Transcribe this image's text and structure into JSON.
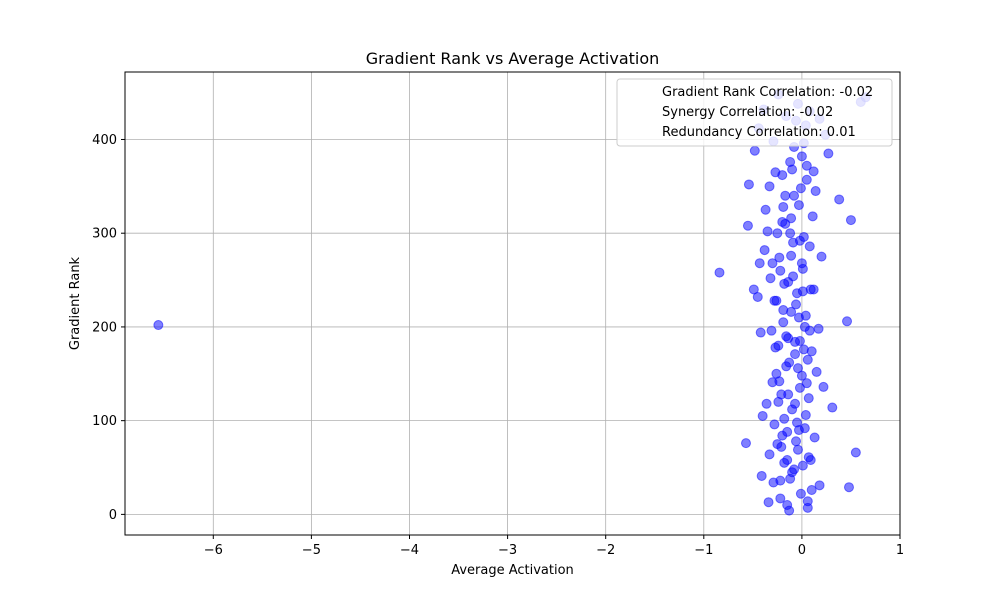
{
  "chart_data": {
    "type": "scatter",
    "title": "Gradient Rank vs Average Activation",
    "xlabel": "Average Activation",
    "ylabel": "Gradient Rank",
    "xlim": [
      -6.9,
      1.0
    ],
    "ylim": [
      -22,
      472
    ],
    "xticks": [
      -6,
      -5,
      -4,
      -3,
      -2,
      -1,
      0,
      1
    ],
    "yticks": [
      0,
      100,
      200,
      300,
      400
    ],
    "grid": true,
    "legend_placement": "top-right",
    "legend": [
      "Gradient Rank Correlation: -0.02",
      "Synergy Correlation: -0.02",
      "Redundancy Correlation: 0.01"
    ],
    "marker_color": "#0000ff",
    "marker_alpha": 0.5,
    "points": [
      [
        -6.56,
        202
      ],
      [
        -0.84,
        258
      ],
      [
        -0.55,
        308
      ],
      [
        -0.54,
        352
      ],
      [
        -0.57,
        76
      ],
      [
        -0.49,
        240
      ],
      [
        -0.45,
        232
      ],
      [
        -0.43,
        268
      ],
      [
        -0.42,
        194
      ],
      [
        -0.41,
        41
      ],
      [
        -0.4,
        105
      ],
      [
        -0.38,
        282
      ],
      [
        -0.37,
        325
      ],
      [
        -0.36,
        118
      ],
      [
        -0.35,
        302
      ],
      [
        -0.34,
        13
      ],
      [
        -0.33,
        64
      ],
      [
        -0.32,
        252
      ],
      [
        -0.31,
        196
      ],
      [
        -0.3,
        141
      ],
      [
        -0.29,
        34
      ],
      [
        -0.28,
        96
      ],
      [
        -0.27,
        365
      ],
      [
        -0.26,
        228
      ],
      [
        -0.25,
        75
      ],
      [
        -0.24,
        180
      ],
      [
        -0.23,
        274
      ],
      [
        -0.22,
        17
      ],
      [
        -0.21,
        128
      ],
      [
        -0.2,
        312
      ],
      [
        -0.19,
        205
      ],
      [
        -0.18,
        55
      ],
      [
        -0.17,
        340
      ],
      [
        -0.16,
        158
      ],
      [
        -0.15,
        88
      ],
      [
        -0.14,
        248
      ],
      [
        -0.13,
        4
      ],
      [
        -0.12,
        376
      ],
      [
        -0.11,
        216
      ],
      [
        -0.1,
        112
      ],
      [
        -0.09,
        290
      ],
      [
        -0.08,
        48
      ],
      [
        -0.07,
        171
      ],
      [
        -0.06,
        420
      ],
      [
        -0.05,
        236
      ],
      [
        -0.04,
        69
      ],
      [
        -0.03,
        330
      ],
      [
        -0.02,
        185
      ],
      [
        -0.01,
        22
      ],
      [
        0.0,
        148
      ],
      [
        0.01,
        262
      ],
      [
        0.02,
        396
      ],
      [
        0.03,
        92
      ],
      [
        0.04,
        212
      ],
      [
        0.05,
        357
      ],
      [
        0.06,
        7
      ],
      [
        0.07,
        124
      ],
      [
        0.08,
        286
      ],
      [
        0.09,
        58
      ],
      [
        0.1,
        174
      ],
      [
        0.11,
        318
      ],
      [
        0.12,
        240
      ],
      [
        0.13,
        82
      ],
      [
        0.14,
        345
      ],
      [
        0.15,
        152
      ],
      [
        0.17,
        198
      ],
      [
        0.18,
        31
      ],
      [
        0.2,
        275
      ],
      [
        0.22,
        136
      ],
      [
        0.24,
        405
      ],
      [
        0.27,
        385
      ],
      [
        0.31,
        114
      ],
      [
        0.38,
        336
      ],
      [
        0.46,
        206
      ],
      [
        0.48,
        29
      ],
      [
        0.5,
        314
      ],
      [
        0.55,
        66
      ],
      [
        0.6,
        440
      ],
      [
        0.65,
        445
      ],
      [
        -0.48,
        388
      ],
      [
        -0.44,
        412
      ],
      [
        -0.39,
        432
      ],
      [
        -0.33,
        350
      ],
      [
        -0.29,
        398
      ],
      [
        -0.24,
        448
      ],
      [
        -0.2,
        362
      ],
      [
        -0.16,
        425
      ],
      [
        -0.12,
        300
      ],
      [
        -0.08,
        392
      ],
      [
        -0.04,
        438
      ],
      [
        0.0,
        382
      ],
      [
        0.04,
        415
      ],
      [
        0.08,
        430
      ],
      [
        0.12,
        366
      ],
      [
        0.18,
        422
      ],
      [
        -0.26,
        150
      ],
      [
        -0.22,
        260
      ],
      [
        -0.18,
        102
      ],
      [
        -0.14,
        188
      ],
      [
        -0.1,
        45
      ],
      [
        -0.06,
        224
      ],
      [
        -0.02,
        135
      ],
      [
        0.02,
        296
      ],
      [
        0.06,
        165
      ],
      [
        0.1,
        26
      ],
      [
        -0.21,
        72
      ],
      [
        -0.17,
        310
      ],
      [
        -0.13,
        162
      ],
      [
        -0.09,
        254
      ],
      [
        -0.05,
        98
      ],
      [
        -0.01,
        348
      ],
      [
        0.03,
        200
      ],
      [
        0.07,
        61
      ],
      [
        -0.28,
        228
      ],
      [
        -0.23,
        142
      ],
      [
        -0.19,
        328
      ],
      [
        -0.15,
        10
      ],
      [
        -0.11,
        276
      ],
      [
        -0.07,
        118
      ],
      [
        -0.03,
        210
      ],
      [
        0.01,
        52
      ],
      [
        0.05,
        372
      ],
      [
        0.09,
        240
      ],
      [
        -0.25,
        300
      ],
      [
        -0.2,
        84
      ],
      [
        -0.16,
        190
      ],
      [
        -0.12,
        38
      ],
      [
        -0.08,
        340
      ],
      [
        -0.04,
        156
      ],
      [
        0.0,
        268
      ],
      [
        0.04,
        106
      ],
      [
        0.08,
        196
      ],
      [
        -0.27,
        178
      ],
      [
        -0.22,
        36
      ],
      [
        -0.18,
        246
      ],
      [
        -0.14,
        128
      ],
      [
        -0.1,
        368
      ],
      [
        -0.06,
        78
      ],
      [
        -0.02,
        292
      ],
      [
        0.02,
        176
      ],
      [
        0.06,
        14
      ],
      [
        -0.3,
        268
      ],
      [
        -0.24,
        120
      ],
      [
        -0.19,
        218
      ],
      [
        -0.15,
        58
      ],
      [
        -0.11,
        316
      ],
      [
        -0.07,
        184
      ],
      [
        -0.03,
        90
      ],
      [
        0.01,
        238
      ],
      [
        0.05,
        140
      ]
    ]
  }
}
